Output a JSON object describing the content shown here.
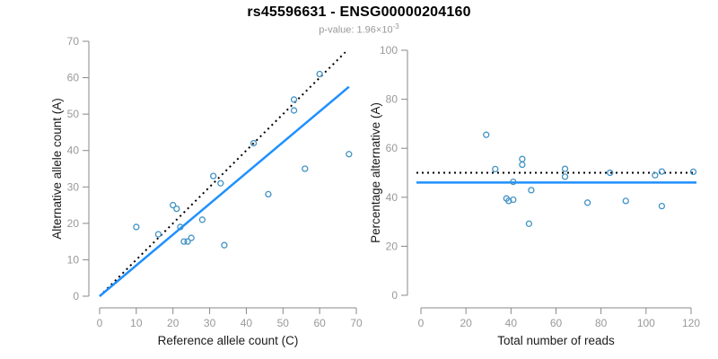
{
  "header": {
    "title": "rs45596631 - ENSG00000204160",
    "subtitle_prefix": "p-value: 1.96×10",
    "subtitle_exponent": "-3"
  },
  "colors": {
    "background": "#ffffff",
    "title": "#000000",
    "subtitle": "#999999",
    "point_stroke": "#4292c6",
    "fit_line": "#1e90ff",
    "reference_line": "#000000",
    "axis": "#888888",
    "tick_label": "#999999",
    "axis_title": "#1a1a1a"
  },
  "chart_data": [
    {
      "type": "scatter",
      "name": "allele-count-scatter",
      "xlabel": "Reference allele count (C)",
      "ylabel": "Alternative allele count (A)",
      "xlim": [
        0,
        70
      ],
      "ylim": [
        0,
        70
      ],
      "xticks": [
        0,
        10,
        20,
        30,
        40,
        50,
        60,
        70
      ],
      "yticks": [
        0,
        10,
        20,
        30,
        40,
        50,
        60,
        70
      ],
      "grid": false,
      "points": [
        [
          10,
          19
        ],
        [
          16,
          17
        ],
        [
          20,
          25
        ],
        [
          21,
          24
        ],
        [
          22,
          19
        ],
        [
          23,
          15
        ],
        [
          24,
          15
        ],
        [
          25,
          16
        ],
        [
          28,
          21
        ],
        [
          31,
          33
        ],
        [
          33,
          31
        ],
        [
          34,
          14
        ],
        [
          42,
          42
        ],
        [
          46,
          28
        ],
        [
          53,
          54
        ],
        [
          53,
          51
        ],
        [
          56,
          35
        ],
        [
          60,
          61
        ],
        [
          68,
          39
        ]
      ],
      "lines": [
        {
          "name": "identity-line",
          "style": "dotted",
          "color_key": "reference_line",
          "from": [
            0,
            0
          ],
          "to": [
            67,
            67
          ]
        },
        {
          "name": "fit-line",
          "style": "solid",
          "color_key": "fit_line",
          "from": [
            0,
            0
          ],
          "to": [
            68,
            57.5
          ]
        }
      ]
    },
    {
      "type": "scatter",
      "name": "percentage-scatter",
      "xlabel": "Total number of reads",
      "ylabel": "Percentage alternative (A)",
      "xlim": [
        0,
        120
      ],
      "ylim": [
        0,
        100
      ],
      "xticks": [
        0,
        20,
        40,
        60,
        80,
        100,
        120
      ],
      "yticks": [
        0,
        20,
        40,
        60,
        80,
        100
      ],
      "grid": false,
      "points": [
        [
          29,
          65.5
        ],
        [
          33,
          51.5
        ],
        [
          45,
          55.6
        ],
        [
          45,
          53.3
        ],
        [
          41,
          46.3
        ],
        [
          38,
          39.5
        ],
        [
          39,
          38.5
        ],
        [
          41,
          39.0
        ],
        [
          49,
          42.9
        ],
        [
          64,
          51.6
        ],
        [
          64,
          48.4
        ],
        [
          48,
          29.2
        ],
        [
          84,
          50.0
        ],
        [
          74,
          37.8
        ],
        [
          107,
          50.5
        ],
        [
          104,
          49.0
        ],
        [
          91,
          38.5
        ],
        [
          121,
          50.4
        ],
        [
          107,
          36.4
        ]
      ],
      "lines": [
        {
          "name": "expected-50pct-line",
          "style": "dotted",
          "color_key": "reference_line",
          "hline": 50
        },
        {
          "name": "mean-percentage-line",
          "style": "solid",
          "color_key": "fit_line",
          "hline": 46
        }
      ]
    }
  ]
}
